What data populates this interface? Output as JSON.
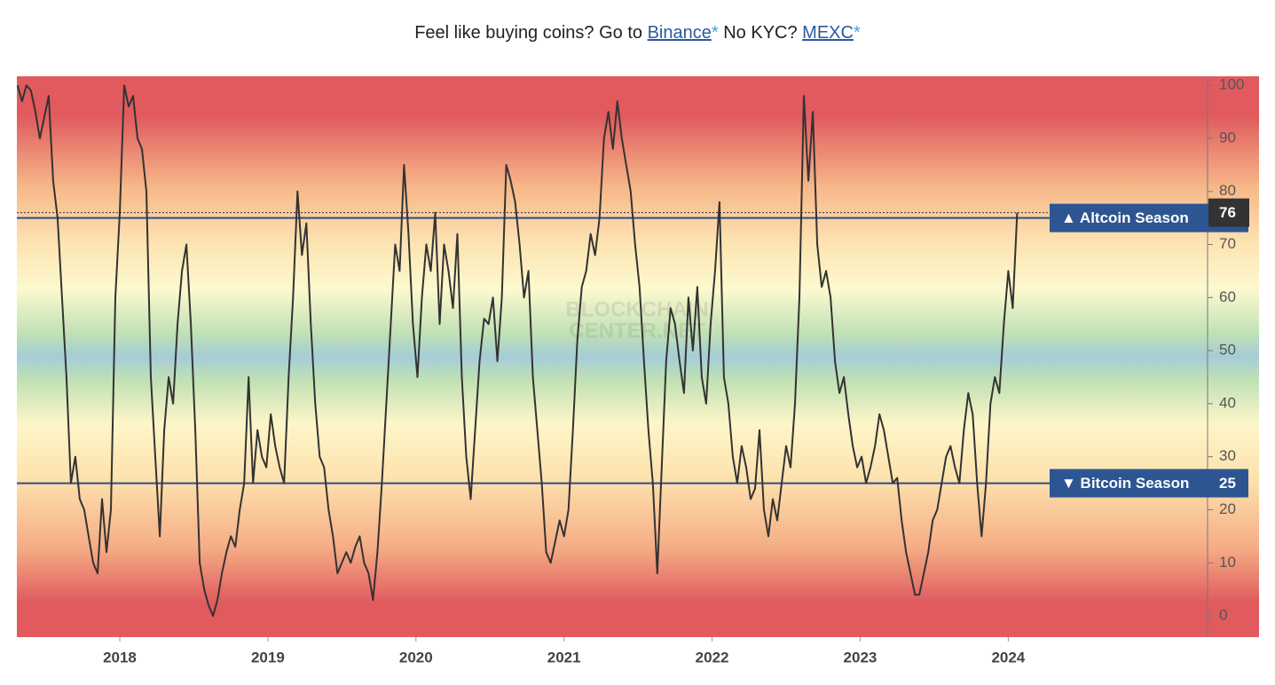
{
  "header": {
    "prefix": "Feel like buying coins? Go to",
    "link1": "Binance",
    "mark": "*",
    "middle": "No KYC?",
    "link2": "MEXC"
  },
  "chart_data": {
    "type": "line",
    "color": "#333333",
    "watermark": [
      "BLOCKCHAIN",
      "CENTER.NET"
    ],
    "xlim": [
      2017.305,
      2025.346
    ],
    "ylim": [
      -4,
      101.7
    ],
    "xticks": [
      2018,
      2019,
      2020,
      2021,
      2022,
      2023,
      2024
    ],
    "yticks": [
      0,
      10,
      20,
      30,
      40,
      50,
      60,
      70,
      80,
      90,
      100
    ],
    "thresholds": [
      {
        "label": "▲ Altcoin Season",
        "value": 75
      },
      {
        "label": "▼ Bitcoin Season",
        "value": 25
      }
    ],
    "x": [
      2017.31,
      2017.34,
      2017.37,
      2017.4,
      2017.43,
      2017.46,
      2017.49,
      2017.52,
      2017.55,
      2017.58,
      2017.61,
      2017.64,
      2017.67,
      2017.7,
      2017.73,
      2017.76,
      2017.79,
      2017.82,
      2017.85,
      2017.88,
      2017.91,
      2017.94,
      2017.97,
      2018,
      2018.03,
      2018.06,
      2018.09,
      2018.12,
      2018.15,
      2018.18,
      2018.21,
      2018.24,
      2018.27,
      2018.3,
      2018.33,
      2018.36,
      2018.39,
      2018.42,
      2018.45,
      2018.48,
      2018.51,
      2018.54,
      2018.57,
      2018.6,
      2018.63,
      2018.66,
      2018.69,
      2018.72,
      2018.75,
      2018.78,
      2018.81,
      2018.84,
      2018.87,
      2018.9,
      2018.93,
      2018.96,
      2018.99,
      2019.02,
      2019.05,
      2019.08,
      2019.11,
      2019.14,
      2019.17,
      2019.2,
      2019.23,
      2019.26,
      2019.29,
      2019.32,
      2019.35,
      2019.38,
      2019.41,
      2019.44,
      2019.47,
      2019.5,
      2019.53,
      2019.56,
      2019.59,
      2019.62,
      2019.65,
      2019.68,
      2019.71,
      2019.74,
      2019.77,
      2019.8,
      2019.83,
      2019.86,
      2019.89,
      2019.92,
      2019.95,
      2019.98,
      2020.01,
      2020.04,
      2020.07,
      2020.1,
      2020.13,
      2020.16,
      2020.19,
      2020.22,
      2020.25,
      2020.28,
      2020.31,
      2020.34,
      2020.37,
      2020.4,
      2020.43,
      2020.46,
      2020.49,
      2020.52,
      2020.55,
      2020.58,
      2020.61,
      2020.64,
      2020.67,
      2020.7,
      2020.73,
      2020.76,
      2020.79,
      2020.82,
      2020.85,
      2020.88,
      2020.91,
      2020.94,
      2020.97,
      2021,
      2021.03,
      2021.06,
      2021.09,
      2021.12,
      2021.15,
      2021.18,
      2021.21,
      2021.24,
      2021.27,
      2021.3,
      2021.33,
      2021.36,
      2021.39,
      2021.42,
      2021.45,
      2021.48,
      2021.51,
      2021.54,
      2021.57,
      2021.6,
      2021.63,
      2021.66,
      2021.69,
      2021.72,
      2021.75,
      2021.78,
      2021.81,
      2021.84,
      2021.87,
      2021.9,
      2021.93,
      2021.96,
      2021.99,
      2022.02,
      2022.05,
      2022.08,
      2022.11,
      2022.14,
      2022.17,
      2022.2,
      2022.23,
      2022.26,
      2022.29,
      2022.32,
      2022.35,
      2022.38,
      2022.41,
      2022.44,
      2022.47,
      2022.5,
      2022.53,
      2022.56,
      2022.59,
      2022.62,
      2022.65,
      2022.68,
      2022.71,
      2022.74,
      2022.77,
      2022.8,
      2022.83,
      2022.86,
      2022.89,
      2022.92,
      2022.95,
      2022.98,
      2023.01,
      2023.04,
      2023.07,
      2023.1,
      2023.13,
      2023.16,
      2023.19,
      2023.22,
      2023.25,
      2023.28,
      2023.31,
      2023.34,
      2023.37,
      2023.4,
      2023.43,
      2023.46,
      2023.49,
      2023.52,
      2023.55,
      2023.58,
      2023.61,
      2023.64,
      2023.67,
      2023.7,
      2023.73,
      2023.76,
      2023.79,
      2023.82,
      2023.85,
      2023.88,
      2023.91,
      2023.94,
      2023.97,
      2024,
      2024.03,
      2024.06
    ],
    "values": [
      100,
      97,
      100,
      99,
      95,
      90,
      94,
      98,
      82,
      75,
      60,
      45,
      25,
      30,
      22,
      20,
      15,
      10,
      8,
      22,
      12,
      20,
      60,
      76,
      100,
      96,
      98,
      90,
      88,
      80,
      45,
      30,
      15,
      35,
      45,
      40,
      55,
      65,
      70,
      55,
      35,
      10,
      5,
      2,
      0,
      3,
      8,
      12,
      15,
      13,
      20,
      25,
      45,
      25,
      35,
      30,
      28,
      38,
      32,
      28,
      25,
      45,
      60,
      80,
      68,
      74,
      55,
      40,
      30,
      28,
      20,
      15,
      8,
      10,
      12,
      10,
      13,
      15,
      10,
      8,
      3,
      12,
      25,
      40,
      55,
      70,
      65,
      85,
      72,
      55,
      45,
      60,
      70,
      65,
      76,
      55,
      70,
      65,
      58,
      72,
      45,
      30,
      22,
      35,
      48,
      56,
      55,
      60,
      48,
      60,
      85,
      82,
      78,
      70,
      60,
      65,
      45,
      35,
      25,
      12,
      10,
      14,
      18,
      15,
      20,
      35,
      52,
      62,
      65,
      72,
      68,
      75,
      90,
      95,
      88,
      97,
      90,
      85,
      80,
      70,
      62,
      48,
      35,
      25,
      8,
      28,
      48,
      58,
      55,
      48,
      42,
      60,
      50,
      62,
      45,
      40,
      55,
      65,
      78,
      45,
      40,
      30,
      25,
      32,
      28,
      22,
      24,
      35,
      20,
      15,
      22,
      18,
      25,
      32,
      28,
      40,
      60,
      98,
      82,
      95,
      70,
      62,
      65,
      60,
      48,
      42,
      45,
      38,
      32,
      28,
      30,
      25,
      28,
      32,
      38,
      35,
      30,
      25,
      26,
      18,
      12,
      8,
      4,
      4,
      8,
      12,
      18,
      20,
      25,
      30,
      32,
      28,
      25,
      35,
      42,
      38,
      25,
      15,
      25,
      40,
      45,
      42,
      55,
      65,
      58,
      76
    ]
  }
}
